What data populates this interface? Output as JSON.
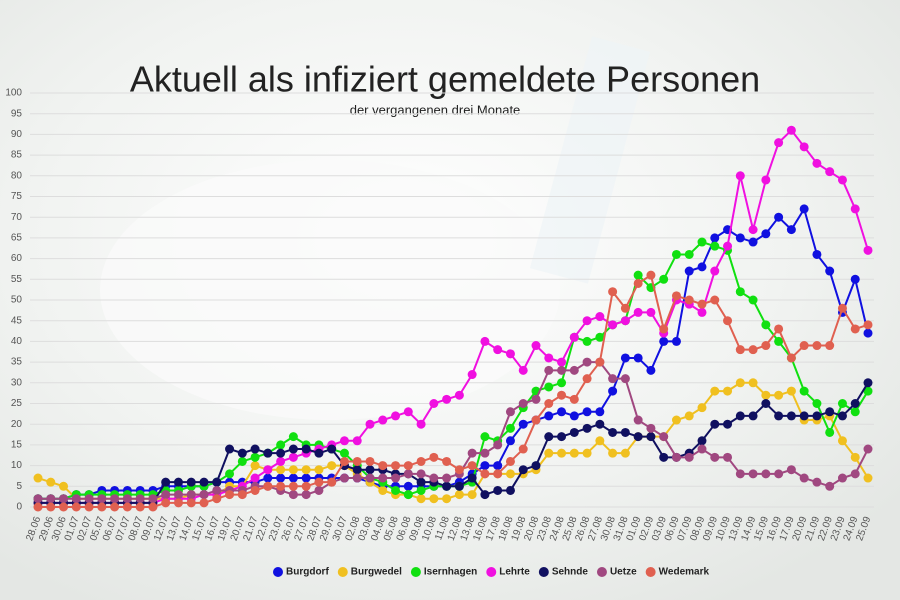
{
  "chart_data": {
    "type": "line",
    "title": "Aktuell als infiziert gemeldete Personen",
    "subtitle": "der vergangenen drei Monate",
    "categories": [
      "28.06",
      "29.06",
      "30.06",
      "01.07",
      "02.07",
      "05.07",
      "06.07",
      "07.07",
      "08.07",
      "09.07",
      "12.07",
      "13.07",
      "14.07",
      "15.07",
      "16.07",
      "19.07",
      "20.07",
      "21.07",
      "22.07",
      "23.07",
      "26.07",
      "27.07",
      "28.07",
      "29.07",
      "30.07",
      "02.08",
      "03.08",
      "04.08",
      "05.08",
      "06.08",
      "09.08",
      "10.08",
      "11.08",
      "12.08",
      "13.08",
      "16.08",
      "17.08",
      "18.08",
      "19.08",
      "20.08",
      "23.08",
      "24.08",
      "25.08",
      "26.08",
      "27.08",
      "30.08",
      "31.08",
      "01.09",
      "02.09",
      "03.09",
      "06.09",
      "07.09",
      "08.09",
      "09.09",
      "10.09",
      "13.09",
      "14.09",
      "15.09",
      "16.09",
      "17.09",
      "20.09",
      "21.09",
      "22.09",
      "23.09",
      "24.09",
      "25.09"
    ],
    "series": [
      {
        "name": "Burgdorf",
        "color": "#1010e0",
        "values": [
          2,
          2,
          2,
          3,
          3,
          4,
          4,
          4,
          4,
          4,
          5,
          5,
          5,
          5,
          6,
          6,
          6,
          6,
          7,
          7,
          7,
          7,
          7,
          7,
          7,
          7,
          6,
          5,
          5,
          5,
          5,
          5,
          5,
          6,
          8,
          10,
          10,
          16,
          20,
          21,
          22,
          23,
          22,
          23,
          23,
          28,
          36,
          36,
          33,
          40,
          40,
          57,
          58,
          65,
          67,
          65,
          64,
          66,
          70,
          67,
          72,
          61,
          57,
          47,
          55,
          42
        ]
      },
      {
        "name": "Burgwedel",
        "color": "#f0c020",
        "values": [
          7,
          6,
          5,
          2,
          2,
          2,
          2,
          2,
          2,
          2,
          2,
          2,
          3,
          3,
          3,
          5,
          5,
          10,
          9,
          9,
          9,
          9,
          9,
          10,
          10,
          8,
          6,
          4,
          3,
          3,
          2,
          2,
          2,
          3,
          3,
          8,
          8,
          8,
          8,
          9,
          13,
          13,
          13,
          13,
          16,
          13,
          13,
          17,
          17,
          17,
          21,
          22,
          24,
          28,
          28,
          30,
          30,
          27,
          27,
          28,
          21,
          21,
          22,
          16,
          12,
          7
        ]
      },
      {
        "name": "Isernhagen",
        "color": "#10e010",
        "values": [
          2,
          2,
          2,
          3,
          3,
          3,
          3,
          3,
          3,
          3,
          4,
          4,
          5,
          5,
          6,
          8,
          11,
          12,
          13,
          15,
          17,
          15,
          15,
          14,
          13,
          10,
          7,
          6,
          4,
          3,
          4,
          5,
          5,
          5,
          6,
          17,
          16,
          19,
          24,
          28,
          29,
          30,
          41,
          40,
          41,
          44,
          45,
          56,
          53,
          55,
          61,
          61,
          64,
          63,
          62,
          52,
          50,
          44,
          40,
          36,
          28,
          25,
          18,
          25,
          23,
          28
        ]
      },
      {
        "name": "Lehrte",
        "color": "#f010e0",
        "values": [
          1,
          1,
          1,
          1,
          1,
          1,
          1,
          1,
          1,
          1,
          2,
          2,
          2,
          3,
          3,
          4,
          5,
          7,
          9,
          11,
          12,
          13,
          14,
          15,
          16,
          16,
          20,
          21,
          22,
          23,
          20,
          25,
          26,
          27,
          32,
          40,
          38,
          37,
          33,
          39,
          36,
          35,
          41,
          45,
          46,
          44,
          45,
          47,
          47,
          42,
          50,
          49,
          47,
          57,
          63,
          80,
          67,
          79,
          88,
          91,
          87,
          83,
          81,
          79,
          72,
          62
        ]
      },
      {
        "name": "Sehnde",
        "color": "#101060",
        "values": [
          1,
          1,
          1,
          1,
          1,
          1,
          1,
          1,
          1,
          1,
          6,
          6,
          6,
          6,
          6,
          14,
          13,
          14,
          13,
          13,
          14,
          14,
          13,
          14,
          10,
          9,
          9,
          9,
          8,
          8,
          6,
          6,
          5,
          5,
          7,
          3,
          4,
          4,
          9,
          10,
          17,
          17,
          18,
          19,
          20,
          18,
          18,
          17,
          17,
          12,
          12,
          13,
          16,
          20,
          20,
          22,
          22,
          25,
          22,
          22,
          22,
          22,
          23,
          22,
          25,
          30
        ]
      },
      {
        "name": "Uetze",
        "color": "#a04880",
        "values": [
          2,
          2,
          2,
          2,
          2,
          2,
          2,
          2,
          2,
          2,
          3,
          3,
          3,
          3,
          4,
          4,
          4,
          5,
          5,
          4,
          3,
          3,
          4,
          6,
          7,
          7,
          7,
          7,
          7,
          8,
          8,
          7,
          7,
          8,
          13,
          13,
          15,
          23,
          25,
          26,
          33,
          33,
          33,
          35,
          35,
          31,
          31,
          21,
          19,
          17,
          12,
          12,
          14,
          12,
          12,
          8,
          8,
          8,
          8,
          9,
          7,
          6,
          5,
          7,
          8,
          14
        ]
      },
      {
        "name": "Wedemark",
        "color": "#e06050",
        "values": [
          0,
          0,
          0,
          0,
          0,
          0,
          0,
          0,
          0,
          0,
          1,
          1,
          1,
          1,
          2,
          3,
          3,
          4,
          5,
          5,
          5,
          5,
          6,
          6,
          11,
          11,
          11,
          10,
          10,
          10,
          11,
          12,
          11,
          9,
          10,
          8,
          8,
          11,
          14,
          21,
          25,
          27,
          26,
          31,
          35,
          52,
          48,
          54,
          56,
          43,
          51,
          50,
          49,
          50,
          45,
          38,
          38,
          39,
          43,
          36,
          39,
          39,
          39,
          48,
          43,
          44
        ]
      }
    ],
    "ylim": [
      0,
      100
    ],
    "yticks": [
      0,
      5,
      10,
      15,
      20,
      25,
      30,
      35,
      40,
      45,
      50,
      55,
      60,
      65,
      70,
      75,
      80,
      85,
      90,
      95,
      100
    ],
    "grid": true
  }
}
